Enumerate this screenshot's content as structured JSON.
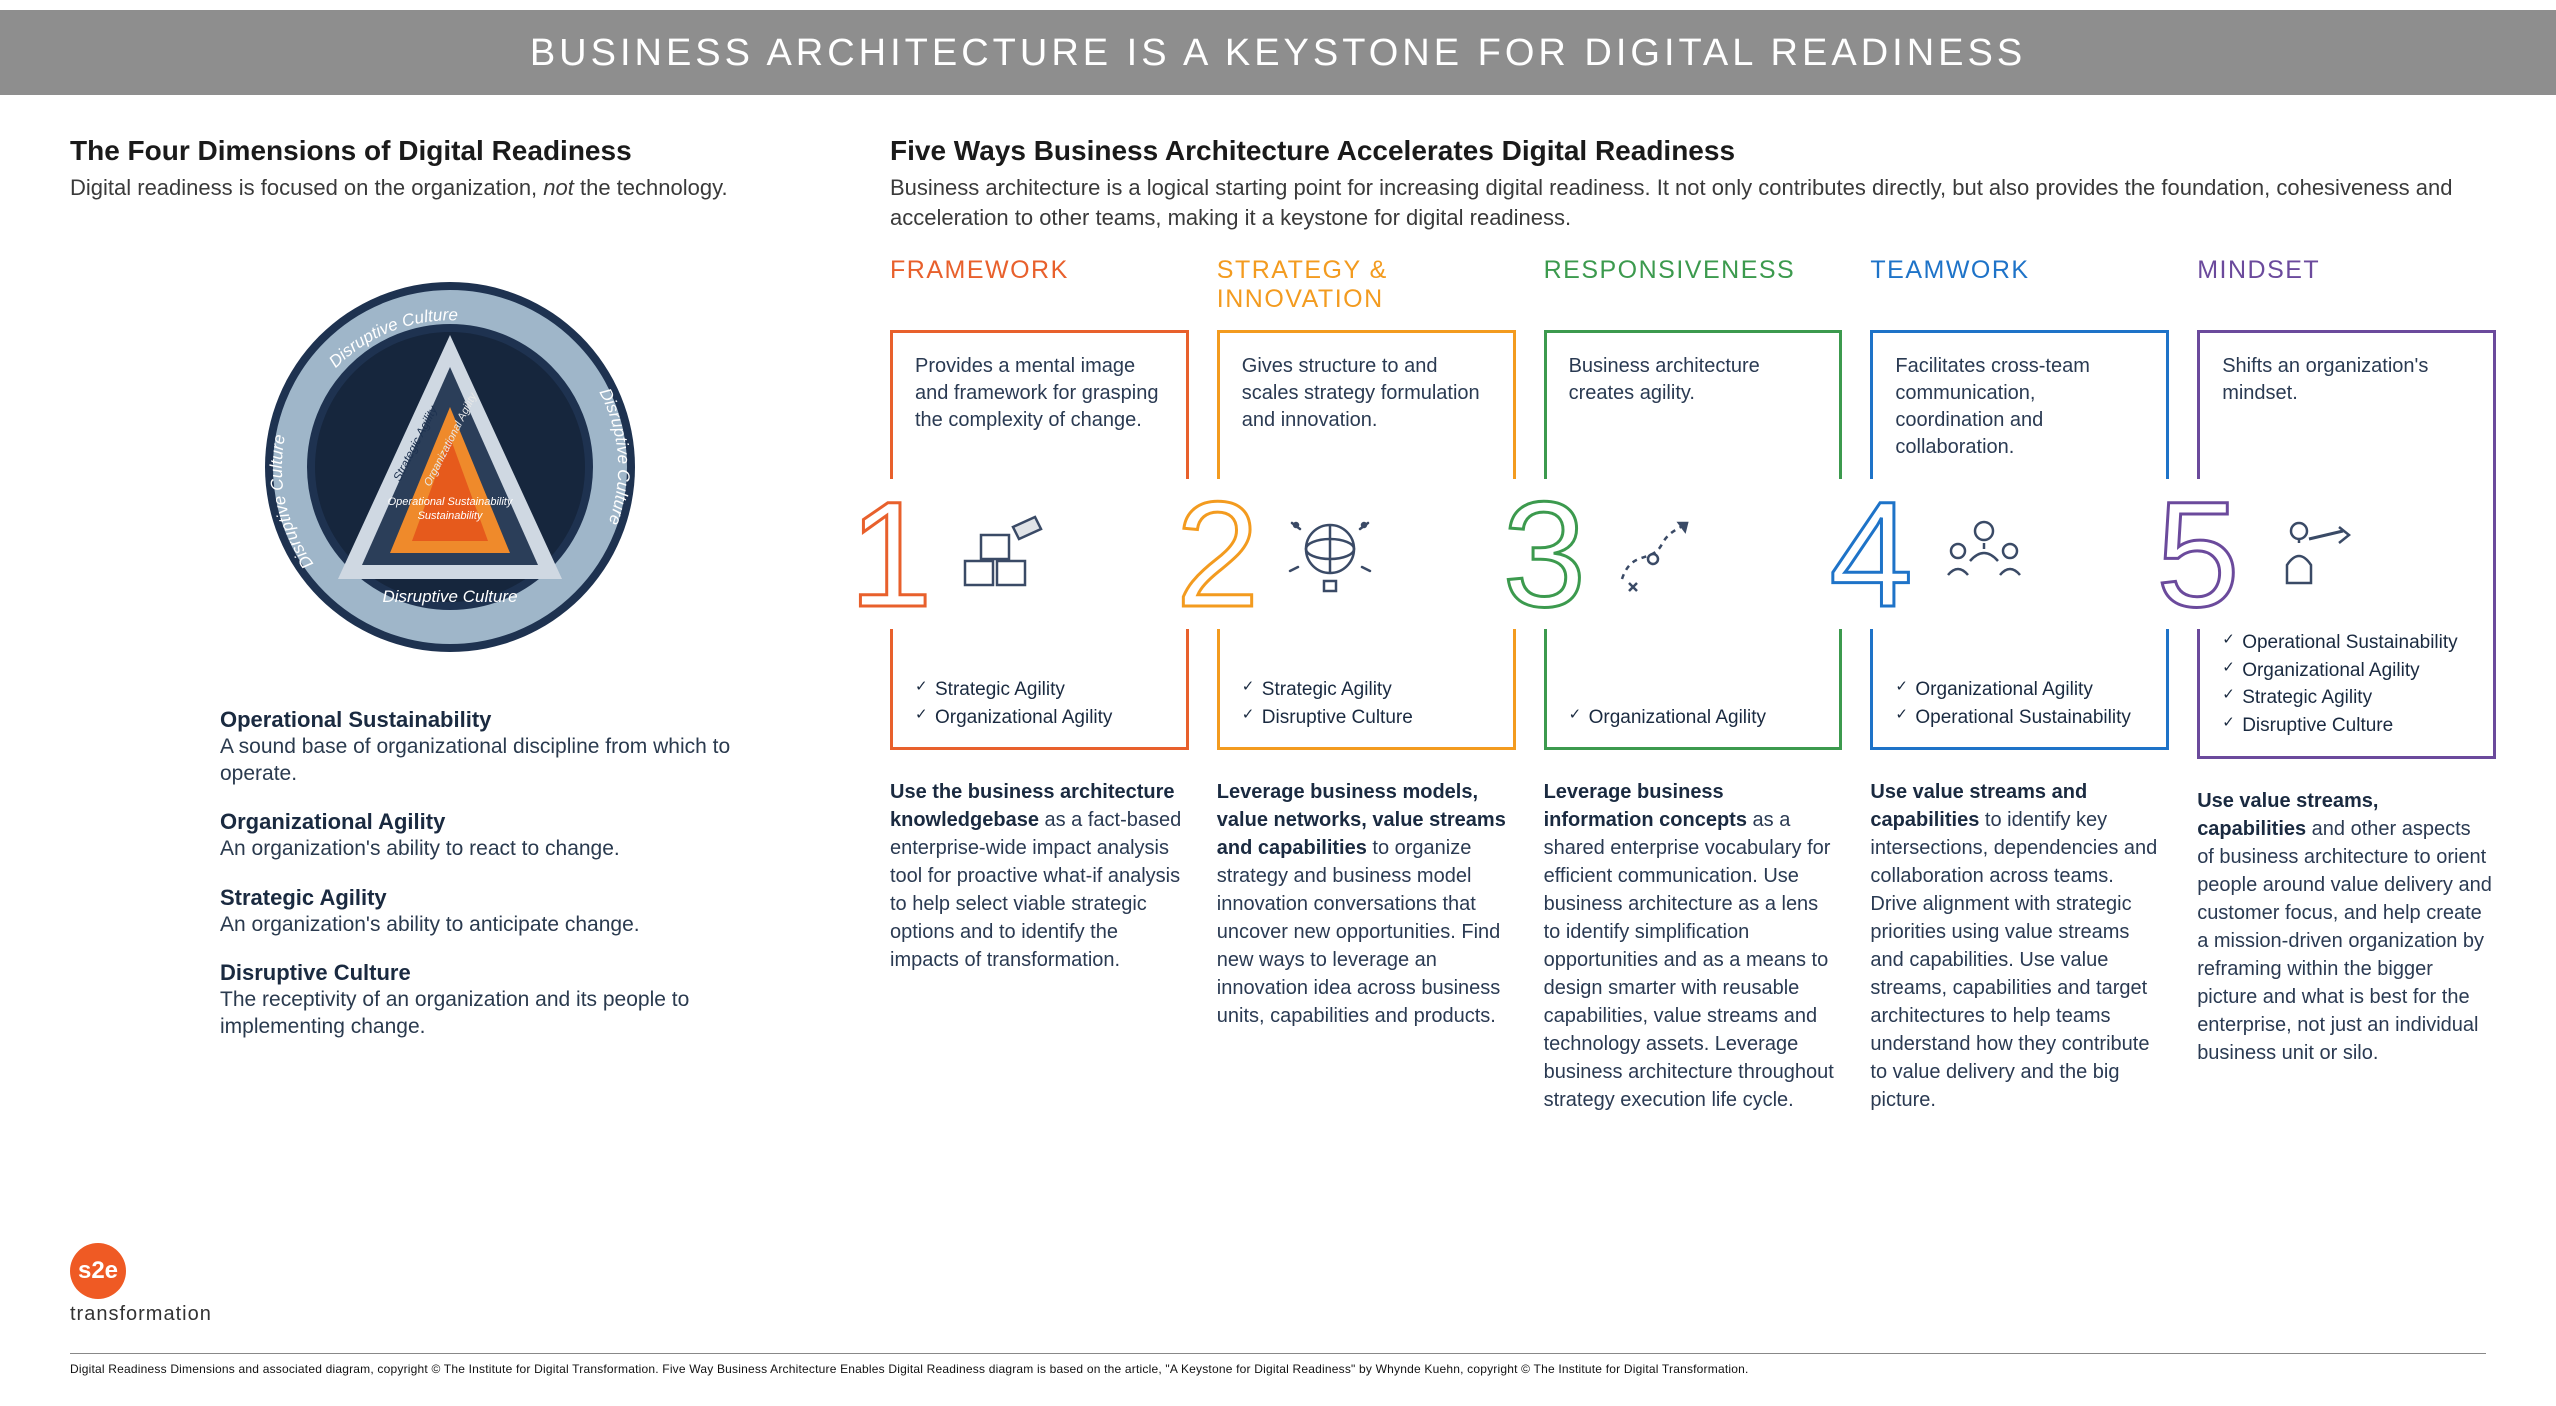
{
  "banner": "BUSINESS ARCHITECTURE IS A KEYSTONE FOR DIGITAL READINESS",
  "left": {
    "heading": "The Four Dimensions of Digital Readiness",
    "sub_prefix": "Digital readiness is focused on the organization, ",
    "sub_em": "not",
    "sub_suffix": " the technology.",
    "dial_labels": {
      "outer": "Disruptive Culture",
      "tri_left": "Strategic Agility",
      "tri_mid": "Organizational Agility",
      "tri_inner": "Operational Sustainability"
    },
    "dims": [
      {
        "title": "Operational Sustainability",
        "text": "A sound base of organizational discipline from which to operate."
      },
      {
        "title": "Organizational Agility",
        "text": "An organization's ability to react to change."
      },
      {
        "title": "Strategic Agility",
        "text": "An organization's ability to anticipate change."
      },
      {
        "title": "Disruptive Culture",
        "text": "The receptivity of an organization and its people to implementing change."
      }
    ]
  },
  "right": {
    "heading": "Five Ways Business Architecture Accelerates Digital Readiness",
    "sub": "Business architecture is a logical starting point for increasing digital readiness. It not only contributes directly, but also provides the foundation, cohesiveness and acceleration to other teams, making it a keystone for digital readiness.",
    "columns": [
      {
        "key": "framework",
        "headline": "FRAMEWORK",
        "color": "#e8602c",
        "num": "1",
        "desc": "Provides a mental image and framework for grasping the complexity of change.",
        "checks": [
          "Strategic Agility",
          "Organizational Agility"
        ],
        "below_bold": "Use the business architecture knowledgebase",
        "below_rest": " as a fact-based enterprise-wide impact analysis tool for proactive what-if analysis to help select viable strategic options and to identify the impacts of transformation."
      },
      {
        "key": "strategy",
        "headline": "STRATEGY & INNOVATION",
        "color": "#f39b1f",
        "num": "2",
        "desc": "Gives structure to and scales strategy formulation and innovation.",
        "checks": [
          "Strategic Agility",
          "Disruptive Culture"
        ],
        "below_bold": "Leverage business models, value networks, value streams and capabilities",
        "below_rest": " to organize strategy and business model innovation conversations that uncover new opportunities. Find new ways to leverage an innovation idea across business units, capabilities and products."
      },
      {
        "key": "responsiveness",
        "headline": "RESPONSIVENESS",
        "color": "#3c9a4e",
        "num": "3",
        "desc": "Business architecture creates agility.",
        "checks": [
          "Organizational Agility"
        ],
        "below_bold": "Leverage business information concepts",
        "below_rest": " as a shared enterprise vocabulary for efficient communication. Use business architecture as a lens to identify simplification opportunities and as a means to design smarter with reusable capabilities, value streams and technology assets. Leverage business architecture throughout strategy execution life cycle."
      },
      {
        "key": "teamwork",
        "headline": "TEAMWORK",
        "color": "#1e73c8",
        "num": "4",
        "desc": "Facilitates cross-team communication, coordination and collaboration.",
        "checks": [
          "Organizational Agility",
          "Operational Sustainability"
        ],
        "below_bold": "Use value streams and capabilities",
        "below_rest": " to identify key intersections, dependencies and collaboration across teams. Drive alignment with strategic priorities using value streams and capabilities. Use value streams, capabilities and target architectures to help teams understand how they contribute to value delivery and the big picture."
      },
      {
        "key": "mindset",
        "headline": "MINDSET",
        "color": "#6b4a9c",
        "num": "5",
        "desc": "Shifts an organization's mindset.",
        "checks": [
          "Operational Sustainability",
          "Organizational Agility",
          "Strategic Agility",
          "Disruptive Culture"
        ],
        "below_bold": "Use value streams, capabilities",
        "below_rest": " and other aspects of business architecture to orient people around value delivery and customer focus, and help create a mission-driven organization by reframing within the bigger picture and what is best for the enterprise, not just an individual business unit or silo."
      }
    ]
  },
  "logo": {
    "badge": "s2e",
    "word": "transformation"
  },
  "footnote": "Digital Readiness Dimensions and associated diagram, copyright © The Institute for Digital Transformation. Five Way Business Architecture Enables Digital Readiness diagram is based on the article, \"A Keystone for Digital Readiness\" by Whynde Kuehn, copyright © The Institute for Digital Transformation."
}
